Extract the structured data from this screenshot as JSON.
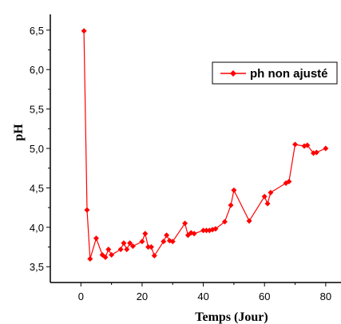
{
  "chart_data": {
    "type": "line",
    "xlabel": "Temps (Jour)",
    "ylabel": "pH",
    "xlim": [
      -10,
      85
    ],
    "ylim": [
      3.3,
      6.7
    ],
    "x_ticks": [
      0,
      20,
      40,
      60,
      80
    ],
    "x_tick_labels": [
      "0",
      "20",
      "40",
      "60",
      "80"
    ],
    "y_ticks": [
      3.5,
      4.0,
      4.5,
      5.0,
      5.5,
      6.0,
      6.5
    ],
    "y_tick_labels": [
      "3,5",
      "4,0",
      "4,5",
      "5,0",
      "5,5",
      "6,0",
      "6,5"
    ],
    "legend_position": "top-right",
    "grid": false,
    "series": [
      {
        "name": "ph non ajusté",
        "color": "#ff0000",
        "marker": "diamond",
        "points": [
          [
            1,
            6.49
          ],
          [
            2,
            4.22
          ],
          [
            3,
            3.6
          ],
          [
            5,
            3.86
          ],
          [
            7,
            3.65
          ],
          [
            8,
            3.62
          ],
          [
            9,
            3.72
          ],
          [
            10,
            3.65
          ],
          [
            13,
            3.72
          ],
          [
            14,
            3.8
          ],
          [
            15,
            3.72
          ],
          [
            16,
            3.8
          ],
          [
            17,
            3.76
          ],
          [
            20,
            3.82
          ],
          [
            21,
            3.92
          ],
          [
            22,
            3.75
          ],
          [
            23,
            3.75
          ],
          [
            24,
            3.64
          ],
          [
            27,
            3.82
          ],
          [
            28,
            3.9
          ],
          [
            29,
            3.83
          ],
          [
            30,
            3.82
          ],
          [
            34,
            4.05
          ],
          [
            35,
            3.9
          ],
          [
            36,
            3.93
          ],
          [
            37,
            3.92
          ],
          [
            40,
            3.96
          ],
          [
            41,
            3.96
          ],
          [
            42,
            3.96
          ],
          [
            43,
            3.97
          ],
          [
            44,
            3.98
          ],
          [
            47,
            4.07
          ],
          [
            49,
            4.28
          ],
          [
            50,
            4.47
          ],
          [
            55,
            4.08
          ],
          [
            60,
            4.39
          ],
          [
            61,
            4.3
          ],
          [
            62,
            4.44
          ],
          [
            67,
            4.56
          ],
          [
            68,
            4.58
          ],
          [
            70,
            5.05
          ],
          [
            73,
            5.03
          ],
          [
            74,
            5.04
          ],
          [
            76,
            4.94
          ],
          [
            77,
            4.95
          ],
          [
            80,
            5.0
          ]
        ]
      }
    ]
  }
}
